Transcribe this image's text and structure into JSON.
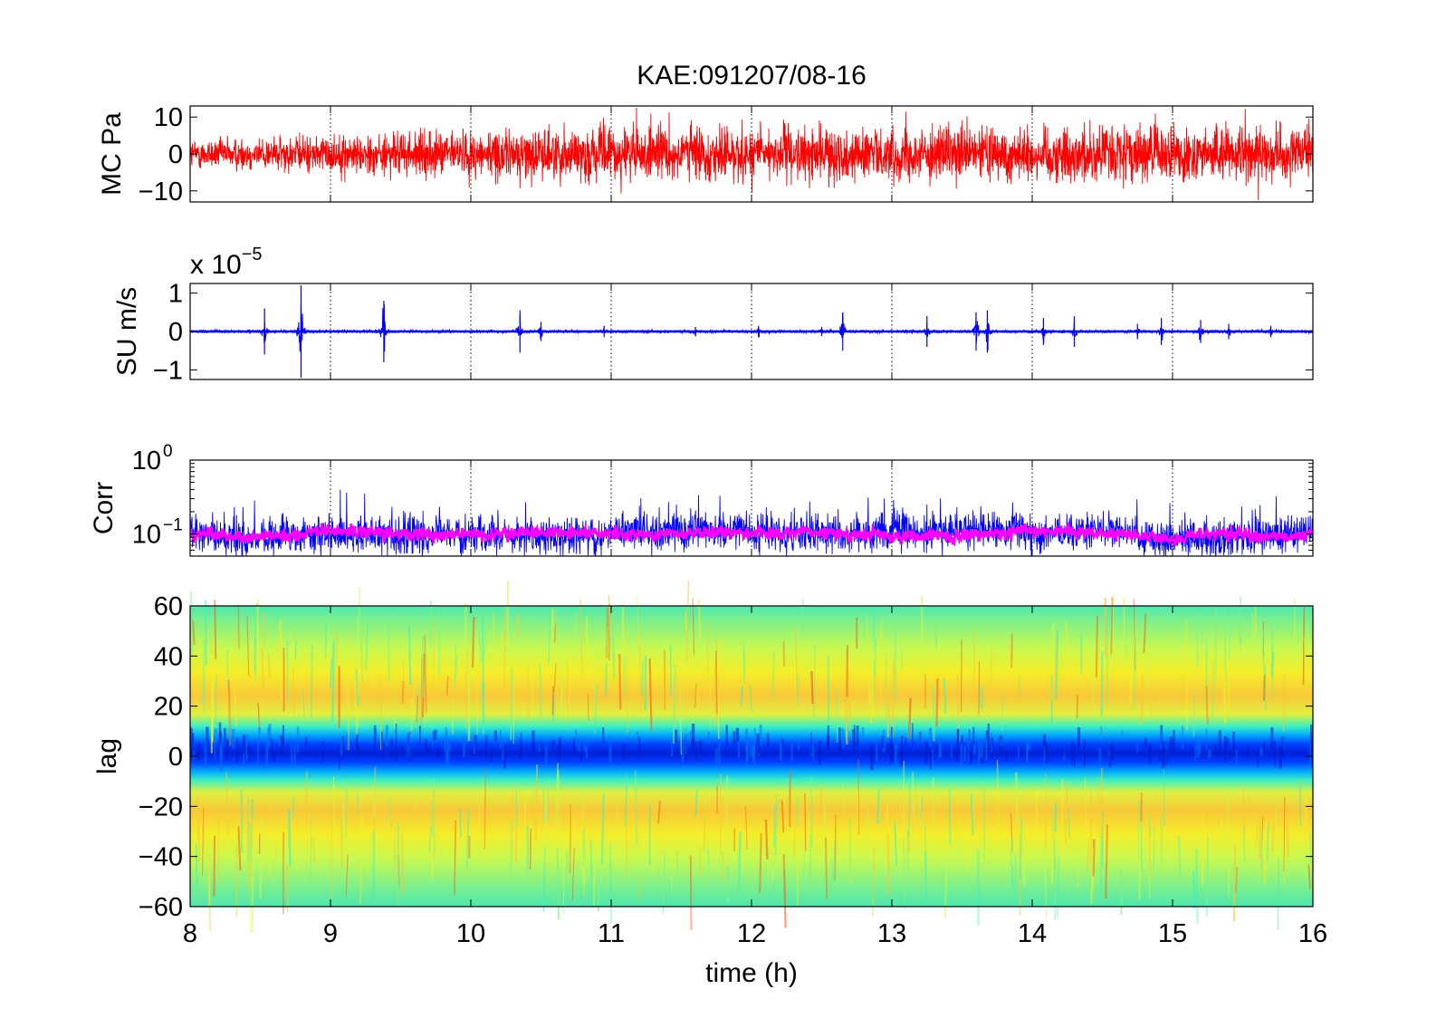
{
  "chart_data": {
    "title": "KAE:091207/08-16",
    "xlabel": "time (h)",
    "xlim": [
      8,
      16
    ],
    "xticks": [
      "8",
      "9",
      "10",
      "11",
      "12",
      "13",
      "14",
      "15",
      "16"
    ],
    "grid": "vertical dotted lines at each hour",
    "panels": [
      {
        "type": "line",
        "ylabel": "MC Pa",
        "ylim": [
          -13,
          13
        ],
        "yticks": [
          "10",
          "0",
          "−10"
        ],
        "color": "#ff0000",
        "description_values": {
          "typical_amplitude": 4,
          "peak_amplitude": 12
        },
        "envelope_x": [
          8,
          9,
          10,
          11,
          12,
          13,
          14,
          14.5,
          15,
          16
        ],
        "envelope_amp": [
          3.5,
          4.5,
          5.5,
          6.5,
          6.5,
          6,
          6.5,
          7,
          6.5,
          6
        ]
      },
      {
        "type": "line",
        "ylabel": "SU m/s",
        "multiplier": "x 10",
        "multiplier_exp": "−5",
        "ylim": [
          -1.25,
          1.25
        ],
        "yticks": [
          "1",
          "0",
          "−1"
        ],
        "color": "#0000ff",
        "baseline_amplitude": 0.03,
        "bursts": [
          {
            "t": 8.53,
            "amp": 0.6
          },
          {
            "t": 8.79,
            "amp": 1.2
          },
          {
            "t": 9.38,
            "amp": 0.8
          },
          {
            "t": 10.35,
            "amp": 0.55
          },
          {
            "t": 10.5,
            "amp": 0.25
          },
          {
            "t": 10.95,
            "amp": 0.15
          },
          {
            "t": 11.6,
            "amp": 0.12
          },
          {
            "t": 12.05,
            "amp": 0.15
          },
          {
            "t": 12.5,
            "amp": 0.12
          },
          {
            "t": 12.65,
            "amp": 0.5
          },
          {
            "t": 13.25,
            "amp": 0.4
          },
          {
            "t": 13.6,
            "amp": 0.5
          },
          {
            "t": 13.68,
            "amp": 0.55
          },
          {
            "t": 14.08,
            "amp": 0.35
          },
          {
            "t": 14.3,
            "amp": 0.4
          },
          {
            "t": 14.75,
            "amp": 0.2
          },
          {
            "t": 14.92,
            "amp": 0.35
          },
          {
            "t": 15.2,
            "amp": 0.3
          },
          {
            "t": 15.4,
            "amp": 0.2
          },
          {
            "t": 15.7,
            "amp": 0.15
          }
        ]
      },
      {
        "type": "line",
        "ylabel": "Corr",
        "yscale": "log",
        "ylim": [
          0.05,
          1
        ],
        "yticks": [
          "10",
          "10"
        ],
        "ytick_exps": [
          "0",
          "−1"
        ],
        "ytick_values": [
          1,
          0.1
        ],
        "series": [
          {
            "color": "#0000ff",
            "median": 0.1,
            "spread_decades": 0.25
          },
          {
            "color": "#ff00ff",
            "median": 0.1,
            "spread_decades": 0.08
          }
        ]
      },
      {
        "type": "heatmap",
        "ylabel": "lag",
        "ylim": [
          -60,
          60
        ],
        "yticks": [
          "60",
          "40",
          "20",
          "0",
          "−20",
          "−40",
          "−60"
        ],
        "colormap": "jet",
        "minimum_band_lag": [
          -2,
          12
        ],
        "band_center_lag": 4
      }
    ]
  }
}
